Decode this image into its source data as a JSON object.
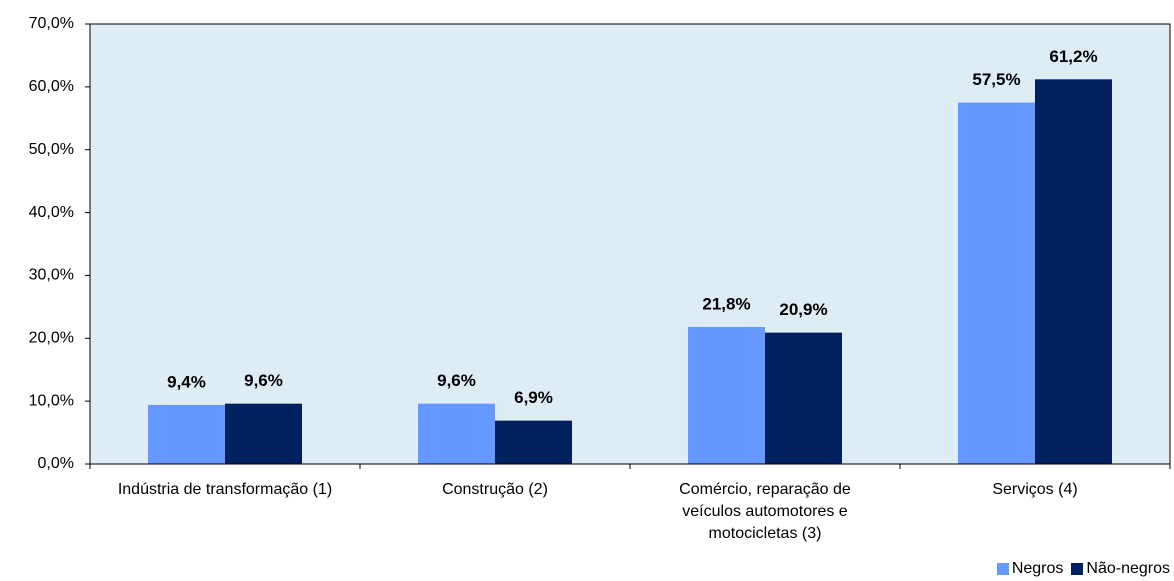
{
  "chart_data": {
    "type": "bar",
    "categories": [
      "Indústria de transformação (1)",
      "Construção (2)",
      "Comércio, reparação de veículos automotores e motocicletas (3)",
      "Serviços (4)"
    ],
    "series": [
      {
        "name": "Negros",
        "color": "#6699ff",
        "values": [
          9.4,
          9.6,
          21.8,
          57.5
        ],
        "value_labels": [
          "9,4%",
          "9,6%",
          "21,8%",
          "57,5%"
        ]
      },
      {
        "name": "Não-negros",
        "color": "#002060",
        "values": [
          9.6,
          6.9,
          20.9,
          61.2
        ],
        "value_labels": [
          "9,6%",
          "6,9%",
          "20,9%",
          "61,2%"
        ]
      }
    ],
    "ylim": [
      0,
      70
    ],
    "yticks": [
      {
        "value": 0,
        "label": "0,0%"
      },
      {
        "value": 10,
        "label": "10,0%"
      },
      {
        "value": 20,
        "label": "20,0%"
      },
      {
        "value": 30,
        "label": "30,0%"
      },
      {
        "value": 40,
        "label": "40,0%"
      },
      {
        "value": 50,
        "label": "50,0%"
      },
      {
        "value": 60,
        "label": "60,0%"
      },
      {
        "value": 70,
        "label": "70,0%"
      }
    ],
    "legend": "bottom-right"
  }
}
